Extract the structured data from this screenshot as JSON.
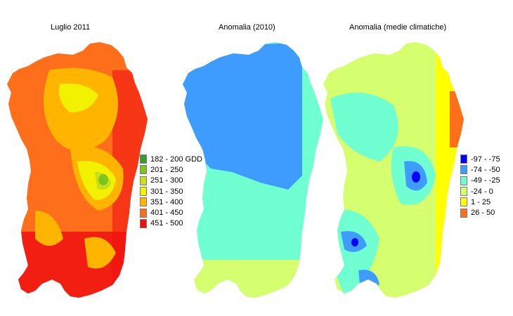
{
  "titles": {
    "map1": "Luglio 2011",
    "map2": "Anomalia (2010)",
    "map3": "Anomalia (medie climatiche)"
  },
  "legend_gdd": [
    {
      "label": "182 - 200 GDD",
      "color": "#33a02c"
    },
    {
      "label": "201 - 250",
      "color": "#7fc31c"
    },
    {
      "label": "251 - 300",
      "color": "#c8e01a"
    },
    {
      "label": "301 - 350",
      "color": "#f2f200"
    },
    {
      "label": "351 - 400",
      "color": "#ffb400"
    },
    {
      "label": "401 - 450",
      "color": "#ff6e1a"
    },
    {
      "label": "451 - 500",
      "color": "#f01010"
    }
  ],
  "legend_anomaly": [
    {
      "label": "-97 - -75",
      "color": "#0000ff"
    },
    {
      "label": "-74 - -50",
      "color": "#3f9cff"
    },
    {
      "label": "-49 - -25",
      "color": "#70ffd0"
    },
    {
      "label": "-24 - 0",
      "color": "#d6ff70"
    },
    {
      "label": "1 - 25",
      "color": "#ffff00"
    },
    {
      "label": "26 - 50",
      "color": "#ff6e1a"
    }
  ]
}
